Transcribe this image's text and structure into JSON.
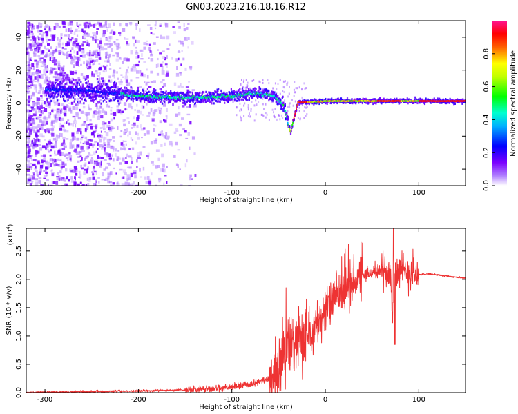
{
  "figure_title": "GN03.2023.216.18.16.R12",
  "chart_data": [
    {
      "type": "heatmap",
      "xlabel": "Height of straight line (km)",
      "ylabel": "Frequency (Hz)",
      "xlim": [
        -320,
        150
      ],
      "ylim": [
        -50,
        50
      ],
      "x_ticks": [
        -300,
        -200,
        -100,
        0,
        100
      ],
      "y_ticks": [
        -40,
        -20,
        0,
        20,
        40
      ],
      "colorbar": {
        "label": "Normalized spectral amplitude",
        "range": [
          0,
          1
        ],
        "ticks": [
          "0.0",
          "0.2",
          "0.4",
          "0.6",
          "0.8"
        ],
        "colors": [
          "#ffffff",
          "#8b00ff",
          "#0000ff",
          "#00ffff",
          "#00ff00",
          "#ffff00",
          "#ff0000",
          "#ff00ff"
        ]
      },
      "ridge": {
        "description_points_x": [
          -290,
          -250,
          -200,
          -150,
          -100,
          -75,
          -55,
          -45,
          -38,
          -30,
          0,
          50,
          100,
          150
        ],
        "description_points_y": [
          8,
          7,
          4,
          3,
          4,
          6,
          4,
          -2,
          -18,
          0,
          1,
          1,
          1,
          1
        ],
        "peak_amplitude_x_range": [
          -35,
          150
        ]
      }
    },
    {
      "type": "line",
      "xlabel": "Height of straight line (km)",
      "ylabel": "SNR (10 * v/v)",
      "multiplier_label": "(x10",
      "multiplier_exp": "4",
      "xlim": [
        -320,
        150
      ],
      "ylim": [
        0,
        2.9
      ],
      "x_ticks": [
        -300,
        -200,
        -100,
        0,
        100
      ],
      "y_ticks": [
        "0.0",
        "0.5",
        "1.0",
        "1.5",
        "2.0",
        "2.5"
      ],
      "line_color": "#ee3333",
      "series": [
        {
          "x": [
            -320,
            -300,
            -250,
            -200,
            -170,
            -150,
            -130,
            -110,
            -100,
            -90,
            -80,
            -70,
            -60,
            -50,
            -45,
            -40,
            -35,
            -30,
            -25,
            -20,
            -15,
            -10,
            -5,
            0,
            10,
            20,
            30,
            40,
            50,
            60,
            65,
            70,
            72,
            74,
            76,
            80,
            85,
            90,
            95,
            100,
            110,
            120,
            130,
            140,
            150
          ],
          "y": [
            0.0,
            0.01,
            0.02,
            0.03,
            0.04,
            0.05,
            0.06,
            0.08,
            0.1,
            0.12,
            0.15,
            0.2,
            0.25,
            0.4,
            0.6,
            0.9,
            0.8,
            0.95,
            0.9,
            1.05,
            1.1,
            1.2,
            1.3,
            1.45,
            1.65,
            1.8,
            1.95,
            2.05,
            2.12,
            2.15,
            2.17,
            2.2,
            1.4,
            2.25,
            2.15,
            2.15,
            2.1,
            2.12,
            2.1,
            2.08,
            2.1,
            2.08,
            2.06,
            2.04,
            2.02
          ]
        }
      ]
    }
  ]
}
